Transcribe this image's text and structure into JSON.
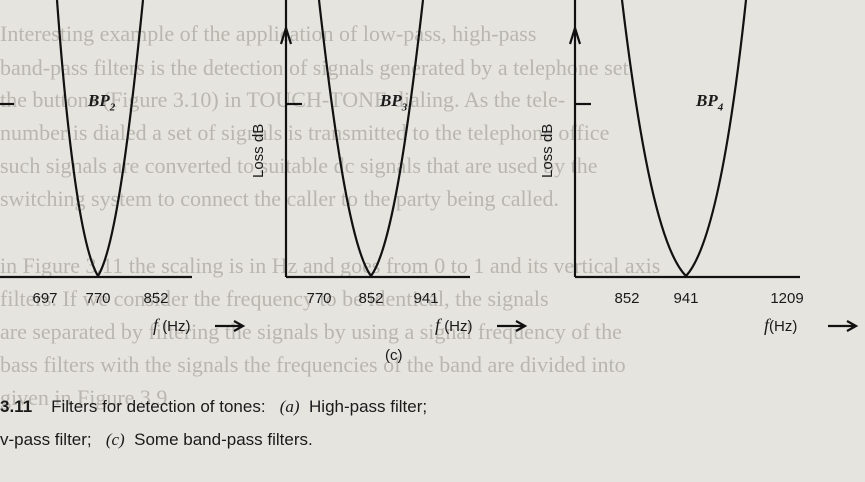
{
  "bleed_through": [
    "Interesting example of the application of low-pass, high-pass",
    "band-pass filters is the detection of signals generated by a telephone set",
    "the buttons (Figure 3.10) in TOUCH-TONE dialing. As the tele-",
    "number is dialed a set of signals is transmitted to the telephone office",
    "such signals are converted to suitable dc signals that are used by the",
    "switching system to connect the caller to the party being called.",
    "in Figure 3.11 the scaling is in Hz and goes from 0 to 1 and its vertical axis",
    "filters. If we consider the frequency to be identical, the signals",
    "are separated by filtering the signals by using a signal frequency of the",
    "bass filters with the signals the frequencies of the band are divided into",
    "given in Figure 3.9"
  ],
  "panels": [
    {
      "bp_main": "BP",
      "bp_sub": "2",
      "ylabel": "",
      "ticks": [
        "697",
        "770",
        "852"
      ],
      "xlabel_f": "f",
      "xlabel_unit": "(Hz)",
      "letter": ""
    },
    {
      "bp_main": "BP",
      "bp_sub": "3",
      "ylabel": "Loss dB",
      "ticks": [
        "770",
        "852",
        "941"
      ],
      "xlabel_f": "f",
      "xlabel_unit": "(Hz)",
      "letter": "(c)"
    },
    {
      "bp_main": "BP",
      "bp_sub": "4",
      "ylabel": "Loss dB",
      "ticks": [
        "852",
        "941",
        "1209"
      ],
      "xlabel_f": "f",
      "xlabel_unit": "(Hz)",
      "letter": ""
    }
  ],
  "caption": {
    "line1_num": "3.11",
    "line1_text": "Filters for detection of tones:",
    "line1_a": "(a)",
    "line1_a_text": "High-pass filter;",
    "line2_pre": "v-pass filter;",
    "line2_c": "(c)",
    "line2_c_text": "Some band-pass filters."
  }
}
